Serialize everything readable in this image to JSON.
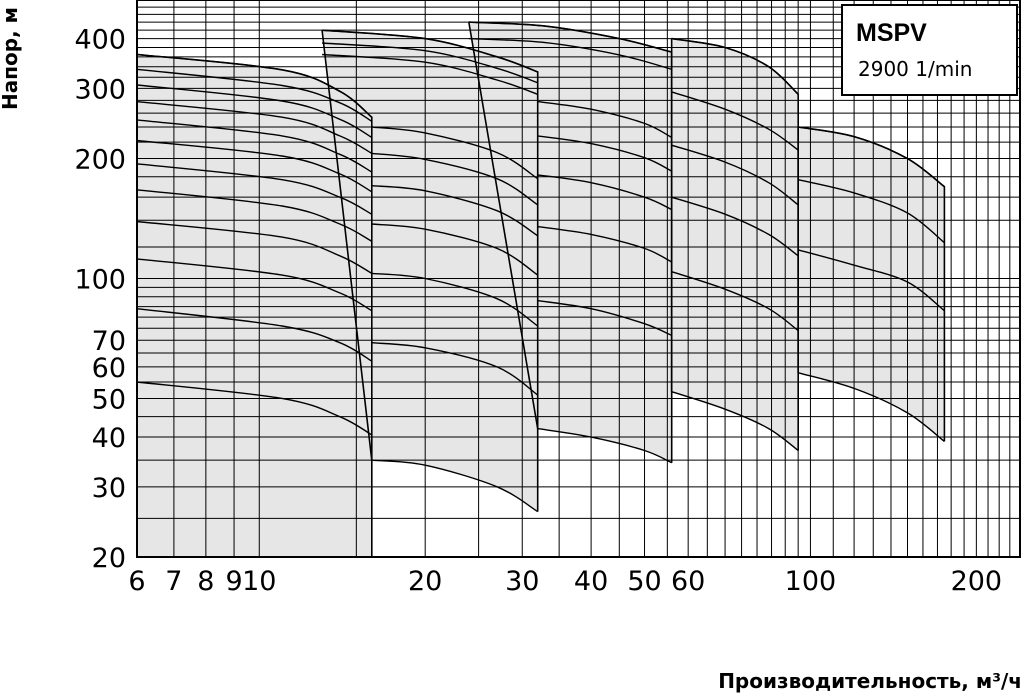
{
  "chart_data": {
    "type": "line",
    "title": "",
    "xlabel": "Производительность, м³/ч",
    "ylabel": "Напор, м",
    "xscale": "log",
    "yscale": "log",
    "xlim": [
      6,
      240
    ],
    "ylim": [
      20,
      500
    ],
    "grid": true,
    "x_ticks": [
      {
        "value": 6,
        "label": "6"
      },
      {
        "value": 7,
        "label": "7"
      },
      {
        "value": 8,
        "label": "8"
      },
      {
        "value": 9,
        "label": "9"
      },
      {
        "value": 10,
        "label": "10"
      },
      {
        "value": 20,
        "label": "20"
      },
      {
        "value": 30,
        "label": "30"
      },
      {
        "value": 40,
        "label": "40"
      },
      {
        "value": 50,
        "label": "50"
      },
      {
        "value": 60,
        "label": "60"
      },
      {
        "value": 100,
        "label": "100"
      },
      {
        "value": 200,
        "label": "200"
      }
    ],
    "y_ticks": [
      {
        "value": 20,
        "label": "20"
      },
      {
        "value": 30,
        "label": "30"
      },
      {
        "value": 40,
        "label": "40"
      },
      {
        "value": 50,
        "label": "50"
      },
      {
        "value": 60,
        "label": "60"
      },
      {
        "value": 70,
        "label": "70"
      },
      {
        "value": 100,
        "label": "100"
      },
      {
        "value": 200,
        "label": "200"
      },
      {
        "value": 300,
        "label": "300"
      },
      {
        "value": 400,
        "label": "400"
      }
    ],
    "legend": {
      "title": "MSPV",
      "subtitle": "2900 1/min",
      "position": "top-right"
    },
    "fill_color": "#e6e6e6",
    "line_color": "#000000",
    "pump_ranges": [
      {
        "q_min": 6,
        "q_max": 16,
        "envelope_top": [
          [
            6,
            365
          ],
          [
            11,
            334
          ],
          [
            14,
            295
          ],
          [
            16,
            254
          ]
        ],
        "envelope_bottom": [
          [
            6,
            20
          ],
          [
            16,
            20
          ]
        ],
        "curves": [
          [
            [
              6,
              55
            ],
            [
              11,
              50
            ],
            [
              14,
              45
            ],
            [
              16,
              40.5
            ]
          ],
          [
            [
              6,
              84
            ],
            [
              11,
              76
            ],
            [
              14,
              69
            ],
            [
              16,
              62
            ]
          ],
          [
            [
              6,
              112
            ],
            [
              11,
              102
            ],
            [
              14,
              92
            ],
            [
              16,
              83
            ]
          ],
          [
            [
              6,
              139
            ],
            [
              11,
              127
            ],
            [
              14,
              114
            ],
            [
              16,
              103
            ]
          ],
          [
            [
              6,
              167
            ],
            [
              11,
              152
            ],
            [
              14,
              137
            ],
            [
              16,
              124
            ]
          ],
          [
            [
              6,
              194
            ],
            [
              11,
              177
            ],
            [
              14,
              160
            ],
            [
              16,
              145
            ]
          ],
          [
            [
              6,
              222
            ],
            [
              11,
              203
            ],
            [
              14,
              183
            ],
            [
              16,
              165
            ]
          ],
          [
            [
              6,
              250
            ],
            [
              11,
              228
            ],
            [
              14,
              205
            ],
            [
              16,
              185
            ]
          ],
          [
            [
              6,
              278
            ],
            [
              11,
              254
            ],
            [
              14,
              228
            ],
            [
              16,
              206
            ]
          ],
          [
            [
              6,
              306
            ],
            [
              11,
              279
            ],
            [
              14,
              251
            ],
            [
              16,
              226
            ]
          ],
          [
            [
              6,
              335
            ],
            [
              11,
              305
            ],
            [
              14,
              276
            ],
            [
              16,
              248
            ]
          ],
          [
            [
              6,
              365
            ],
            [
              11,
              334
            ],
            [
              14,
              295
            ],
            [
              16,
              254
            ]
          ]
        ]
      },
      {
        "q_min": 13,
        "q_max": 32,
        "envelope_top": [
          [
            13,
            420
          ],
          [
            20,
            400
          ],
          [
            27,
            360
          ],
          [
            32,
            330
          ]
        ],
        "envelope_bottom": [
          [
            16,
            35
          ],
          [
            20,
            34
          ],
          [
            27,
            30
          ],
          [
            32,
            26
          ]
        ],
        "curves": [
          [
            [
              16,
              35
            ],
            [
              20,
              34
            ],
            [
              27,
              30
            ],
            [
              32,
              26
            ]
          ],
          [
            [
              16,
              69
            ],
            [
              20,
              67
            ],
            [
              27,
              60
            ],
            [
              32,
              51
            ]
          ],
          [
            [
              16,
              103
            ],
            [
              20,
              100
            ],
            [
              27,
              89
            ],
            [
              32,
              76
            ]
          ],
          [
            [
              16,
              137
            ],
            [
              20,
              133
            ],
            [
              27,
              119
            ],
            [
              32,
              102
            ]
          ],
          [
            [
              16,
              171
            ],
            [
              20,
              166
            ],
            [
              27,
              148
            ],
            [
              32,
              128
            ]
          ],
          [
            [
              16,
              206
            ],
            [
              20,
              199
            ],
            [
              27,
              178
            ],
            [
              32,
              153
            ]
          ],
          [
            [
              16,
              240
            ],
            [
              20,
              232
            ],
            [
              27,
              207
            ],
            [
              32,
              178
            ]
          ],
          [
            [
              13,
              365
            ],
            [
              20,
              349
            ],
            [
              27,
              315
            ],
            [
              32,
              290
            ]
          ],
          [
            [
              13,
              390
            ],
            [
              20,
              373
            ],
            [
              27,
              337
            ],
            [
              32,
              310
            ]
          ],
          [
            [
              13,
              420
            ],
            [
              20,
              400
            ],
            [
              27,
              360
            ],
            [
              32,
              330
            ]
          ]
        ]
      },
      {
        "q_min": 24,
        "q_max": 56,
        "envelope_top": [
          [
            24,
            440
          ],
          [
            33,
            430
          ],
          [
            45,
            400
          ],
          [
            56,
            370
          ]
        ],
        "envelope_bottom": [
          [
            32,
            42
          ],
          [
            40,
            40
          ],
          [
            50,
            37
          ],
          [
            56,
            34.5
          ]
        ],
        "curves": [
          [
            [
              32,
              42
            ],
            [
              40,
              40
            ],
            [
              50,
              37
            ],
            [
              56,
              34.5
            ]
          ],
          [
            [
              32,
              88
            ],
            [
              40,
              84
            ],
            [
              50,
              77
            ],
            [
              56,
              72
            ]
          ],
          [
            [
              32,
              135
            ],
            [
              40,
              129
            ],
            [
              50,
              119
            ],
            [
              56,
              110
            ]
          ],
          [
            [
              32,
              182
            ],
            [
              40,
              174
            ],
            [
              50,
              160
            ],
            [
              56,
              149
            ]
          ],
          [
            [
              32,
              228
            ],
            [
              40,
              218
            ],
            [
              50,
              201
            ],
            [
              56,
              186
            ]
          ],
          [
            [
              32,
              278
            ],
            [
              40,
              266
            ],
            [
              50,
              245
            ],
            [
              56,
              226
            ]
          ],
          [
            [
              24,
              400
            ],
            [
              33,
              391
            ],
            [
              45,
              364
            ],
            [
              56,
              335
            ]
          ],
          [
            [
              24,
              440
            ],
            [
              33,
              430
            ],
            [
              45,
              400
            ],
            [
              56,
              370
            ]
          ]
        ]
      },
      {
        "q_min": 56,
        "q_max": 95,
        "envelope_top": [
          [
            56,
            400
          ],
          [
            70,
            380
          ],
          [
            84,
            340
          ],
          [
            95,
            290
          ]
        ],
        "envelope_bottom": [
          [
            56,
            52
          ],
          [
            70,
            47
          ],
          [
            84,
            42
          ],
          [
            95,
            37
          ]
        ],
        "curves": [
          [
            [
              56,
              52
            ],
            [
              70,
              47
            ],
            [
              84,
              42
            ],
            [
              95,
              37
            ]
          ],
          [
            [
              56,
              104
            ],
            [
              70,
              94
            ],
            [
              84,
              84
            ],
            [
              95,
              74
            ]
          ],
          [
            [
              56,
              160
            ],
            [
              70,
              145
            ],
            [
              84,
              129
            ],
            [
              95,
              114
            ]
          ],
          [
            [
              56,
              216
            ],
            [
              70,
              196
            ],
            [
              84,
              174
            ],
            [
              95,
              153
            ]
          ],
          [
            [
              56,
              294
            ],
            [
              70,
              266
            ],
            [
              84,
              237
            ],
            [
              95,
              210
            ]
          ],
          [
            [
              56,
              400
            ],
            [
              70,
              380
            ],
            [
              84,
              340
            ],
            [
              95,
              290
            ]
          ]
        ]
      },
      {
        "q_min": 95,
        "q_max": 175,
        "envelope_top": [
          [
            95,
            240
          ],
          [
            120,
            227
          ],
          [
            150,
            200
          ],
          [
            175,
            170
          ]
        ],
        "envelope_bottom": [
          [
            95,
            58
          ],
          [
            120,
            53
          ],
          [
            150,
            46
          ],
          [
            175,
            39
          ]
        ],
        "curves": [
          [
            [
              95,
              58
            ],
            [
              120,
              53
            ],
            [
              150,
              46
            ],
            [
              175,
              39
            ]
          ],
          [
            [
              95,
              118
            ],
            [
              120,
              108
            ],
            [
              150,
              98
            ],
            [
              175,
              83
            ]
          ],
          [
            [
              95,
              177
            ],
            [
              120,
              164
            ],
            [
              150,
              146
            ],
            [
              175,
              123
            ]
          ],
          [
            [
              95,
              240
            ],
            [
              120,
              227
            ],
            [
              150,
              200
            ],
            [
              175,
              170
            ]
          ]
        ]
      }
    ]
  }
}
